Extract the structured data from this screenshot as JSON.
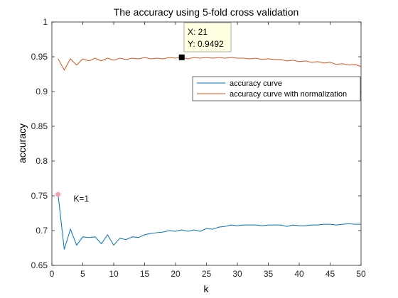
{
  "chart_data": {
    "type": "line",
    "title": "The accuracy using 5-fold cross validation",
    "xlabel": "k",
    "ylabel": "accuracy",
    "xlim": [
      0,
      50
    ],
    "ylim": [
      0.65,
      1
    ],
    "xticks": [
      0,
      5,
      10,
      15,
      20,
      25,
      30,
      35,
      40,
      45,
      50
    ],
    "yticks": [
      0.65,
      0.7,
      0.75,
      0.8,
      0.85,
      0.9,
      0.95,
      1
    ],
    "ytick_labels": [
      "0.65",
      "0.7",
      "0.75",
      "0.8",
      "0.85",
      "0.9",
      "0.95",
      "1"
    ],
    "grid": false,
    "legend_position": "top-right",
    "series": [
      {
        "name": "accuracy curve",
        "color": "#0072BD",
        "x": [
          1,
          2,
          3,
          4,
          5,
          6,
          7,
          8,
          9,
          10,
          11,
          12,
          13,
          14,
          15,
          16,
          17,
          18,
          19,
          20,
          21,
          22,
          23,
          24,
          25,
          26,
          27,
          28,
          29,
          30,
          31,
          32,
          33,
          34,
          35,
          36,
          37,
          38,
          39,
          40,
          41,
          42,
          43,
          44,
          45,
          46,
          47,
          48,
          49,
          50
        ],
        "y": [
          0.752,
          0.673,
          0.702,
          0.679,
          0.691,
          0.69,
          0.691,
          0.681,
          0.694,
          0.679,
          0.689,
          0.687,
          0.691,
          0.69,
          0.694,
          0.696,
          0.697,
          0.698,
          0.7,
          0.699,
          0.701,
          0.699,
          0.701,
          0.699,
          0.703,
          0.702,
          0.705,
          0.706,
          0.708,
          0.707,
          0.708,
          0.708,
          0.708,
          0.707,
          0.708,
          0.708,
          0.708,
          0.706,
          0.708,
          0.707,
          0.707,
          0.708,
          0.708,
          0.709,
          0.709,
          0.708,
          0.709,
          0.71,
          0.709,
          0.709
        ]
      },
      {
        "name": "accuracy curve with normalization",
        "color": "#D95319",
        "x": [
          1,
          2,
          3,
          4,
          5,
          6,
          7,
          8,
          9,
          10,
          11,
          12,
          13,
          14,
          15,
          16,
          17,
          18,
          19,
          20,
          21,
          22,
          23,
          24,
          25,
          26,
          27,
          28,
          29,
          30,
          31,
          32,
          33,
          34,
          35,
          36,
          37,
          38,
          39,
          40,
          41,
          42,
          43,
          44,
          45,
          46,
          47,
          48,
          49,
          50
        ],
        "y": [
          0.947,
          0.931,
          0.947,
          0.938,
          0.947,
          0.944,
          0.948,
          0.944,
          0.948,
          0.945,
          0.948,
          0.946,
          0.948,
          0.947,
          0.949,
          0.947,
          0.948,
          0.947,
          0.949,
          0.948,
          0.9492,
          0.947,
          0.949,
          0.948,
          0.949,
          0.948,
          0.949,
          0.948,
          0.949,
          0.948,
          0.948,
          0.947,
          0.948,
          0.946,
          0.947,
          0.946,
          0.946,
          0.944,
          0.945,
          0.943,
          0.944,
          0.942,
          0.943,
          0.941,
          0.942,
          0.939,
          0.94,
          0.938,
          0.939,
          0.936
        ]
      }
    ],
    "highlight_marker": {
      "x": 1,
      "y": 0.752,
      "color": "#F4A0A8"
    },
    "annotations": [
      {
        "text": "K=1",
        "x": 3.5,
        "y": 0.742
      }
    ],
    "datatip": {
      "x": 21,
      "y": 0.9492,
      "line1": "X: 21",
      "line2": "Y: 0.9492",
      "background": "#FFFFE1",
      "marker_color": "#000000"
    }
  }
}
